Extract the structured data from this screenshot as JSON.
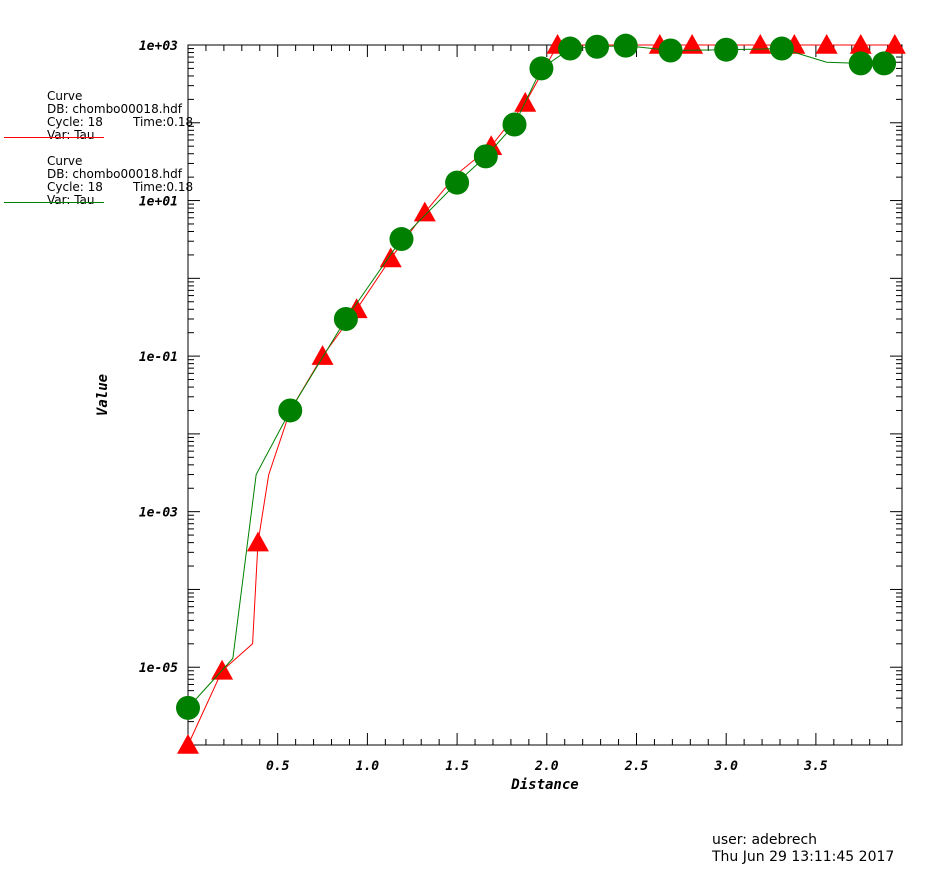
{
  "chart_data": {
    "type": "line",
    "xlabel": "Distance",
    "ylabel": "Value",
    "xlim": [
      0.0,
      3.98
    ],
    "ylim": [
      1e-06,
      1000
    ],
    "y_scale": "log",
    "x_ticks": [
      "0.5",
      "1.0",
      "1.5",
      "2.0",
      "2.5",
      "3.0",
      "3.5"
    ],
    "x_tick_values": [
      0.5,
      1.0,
      1.5,
      2.0,
      2.5,
      3.0,
      3.5
    ],
    "y_ticks": [
      "1e+03",
      "1e+01",
      "1e-01",
      "1e-03",
      "1e-05"
    ],
    "y_tick_values": [
      1000,
      10,
      0.1,
      0.001,
      1e-05
    ],
    "grid": false,
    "series": [
      {
        "name": "Curve",
        "color": "#ff0000",
        "marker": "triangle",
        "x": [
          0.0,
          0.19,
          0.36,
          0.39,
          0.45,
          0.57,
          0.75,
          0.94,
          1.13,
          1.32,
          1.5,
          1.69,
          1.88,
          2.06,
          2.25,
          2.44,
          2.63,
          2.81,
          3.0,
          3.19,
          3.38,
          3.56,
          3.75,
          3.94
        ],
        "y": [
          1e-06,
          9e-06,
          2e-05,
          0.0004,
          0.003,
          0.02,
          0.1,
          0.4,
          1.8,
          7,
          22,
          50,
          180,
          1000,
          1000,
          1000,
          1000,
          1000,
          1000,
          1000,
          1000,
          1000,
          1000,
          1000
        ],
        "marker_x": [
          0.0,
          0.19,
          0.39,
          0.75,
          0.94,
          1.13,
          1.32,
          1.69,
          1.88,
          2.06,
          2.63,
          2.81,
          3.19,
          3.38,
          3.56,
          3.75,
          3.94
        ]
      },
      {
        "name": "Curve",
        "color": "#008000",
        "marker": "circle",
        "x": [
          0.0,
          0.25,
          0.38,
          0.57,
          0.88,
          1.19,
          1.5,
          1.66,
          1.82,
          1.97,
          2.13,
          2.28,
          2.44,
          2.69,
          3.0,
          3.31,
          3.56,
          3.75,
          3.88
        ],
        "y": [
          3e-06,
          1.3e-05,
          0.003,
          0.02,
          0.3,
          3.2,
          17,
          37,
          95,
          500,
          900,
          950,
          980,
          850,
          870,
          900,
          600,
          580,
          580
        ],
        "marker_x": [
          0.0,
          0.57,
          0.88,
          1.19,
          1.5,
          1.66,
          1.82,
          1.97,
          2.13,
          2.28,
          2.44,
          2.69,
          3.0,
          3.31,
          3.75,
          3.88
        ]
      }
    ]
  },
  "legend": [
    {
      "title": "Curve",
      "db": "DB: chombo00018.hdf",
      "cycle": "Cycle: 18",
      "time": "Time:0.18",
      "var": "Var: Tau",
      "color": "#ff0000"
    },
    {
      "title": "Curve",
      "db": "DB: chombo00018.hdf",
      "cycle": "Cycle: 18",
      "time": "Time:0.18",
      "var": "Var: Tau",
      "color": "#008000"
    }
  ],
  "footer": {
    "user": "user: adebrech",
    "timestamp": "Thu Jun 29 13:11:45 2017"
  }
}
